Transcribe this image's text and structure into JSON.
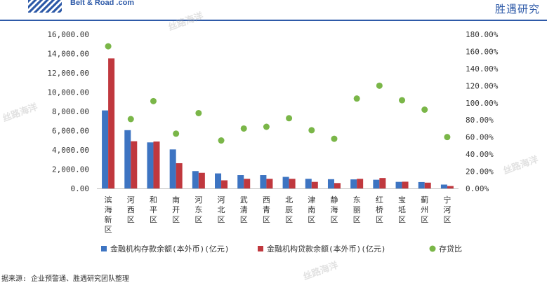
{
  "header": {
    "logo_text": "Belt & Road .com",
    "brand": "胜遇研究"
  },
  "source": "据来源: 企业预警通、胜遇研究团队整理",
  "watermark": "丝路海洋",
  "chart_data": {
    "type": "bar",
    "categories": [
      "滨海新区",
      "河西区",
      "和平区",
      "南开区",
      "河东区",
      "河北区",
      "武清区",
      "西青区",
      "北辰区",
      "津南区",
      "静海区",
      "东丽区",
      "红桥区",
      "宝坻区",
      "蓟州区",
      "宁河区"
    ],
    "series": [
      {
        "name": "金融机构存款余额(本外币)(亿元)",
        "type": "bar",
        "axis": "left",
        "color": "#3d74c2",
        "values": [
          8100,
          6050,
          4780,
          4050,
          1800,
          1560,
          1380,
          1380,
          1200,
          1000,
          960,
          940,
          900,
          680,
          660,
          400
        ]
      },
      {
        "name": "金融机构贷款余额(本外币)(亿元)",
        "type": "bar",
        "axis": "left",
        "color": "#c0383e",
        "values": [
          13500,
          4900,
          4870,
          2620,
          1620,
          840,
          1000,
          1000,
          1000,
          680,
          560,
          1000,
          1080,
          700,
          600,
          250
        ]
      },
      {
        "name": "存贷比",
        "type": "scatter",
        "axis": "right",
        "color": "#7ab648",
        "values": [
          166,
          81,
          102,
          64,
          88,
          56,
          70,
          72,
          82,
          68,
          58,
          105,
          120,
          103,
          92,
          60
        ]
      }
    ],
    "ylim_left": [
      0,
      16000
    ],
    "ylim_right": [
      0,
      180
    ],
    "left_ticks": [
      "0.00",
      "2,000.00",
      "4,000.00",
      "6,000.00",
      "8,000.00",
      "10,000.00",
      "12,000.00",
      "14,000.00",
      "16,000.00"
    ],
    "right_ticks": [
      "0.00%",
      "20.00%",
      "40.00%",
      "60.00%",
      "80.00%",
      "100.00%",
      "120.00%",
      "140.00%",
      "160.00%",
      "180.00%"
    ],
    "legend_position": "bottom",
    "grid": false
  }
}
